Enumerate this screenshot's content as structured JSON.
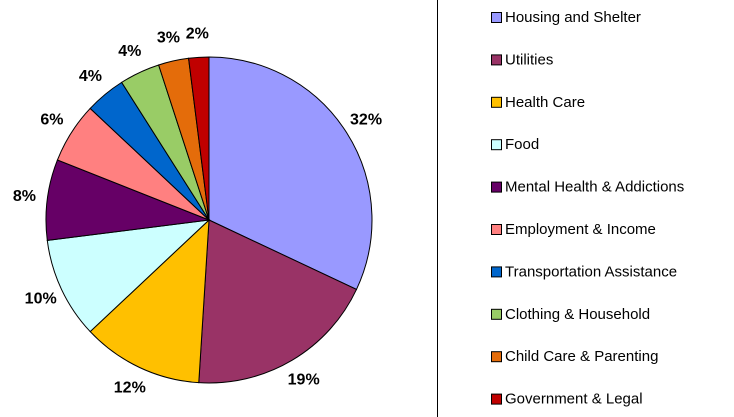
{
  "chart_data": {
    "type": "pie",
    "categories": [
      "Housing and Shelter",
      "Utilities",
      "Health Care",
      "Food",
      "Mental Health & Addictions",
      "Employment & Income",
      "Transportation Assistance",
      "Clothing & Household",
      "Child Care & Parenting",
      "Government & Legal"
    ],
    "values": [
      32,
      19,
      12,
      10,
      8,
      6,
      4,
      4,
      3,
      2
    ],
    "value_labels": [
      "32%",
      "19%",
      "12%",
      "10%",
      "8%",
      "6%",
      "4%",
      "4%",
      "3%",
      "2%"
    ],
    "colors": [
      "#9999FF",
      "#993366",
      "#FFC000",
      "#CCFFFF",
      "#660066",
      "#FF8080",
      "#0066CC",
      "#99CC66",
      "#E46C0A",
      "#C00000"
    ],
    "legend": "right"
  }
}
